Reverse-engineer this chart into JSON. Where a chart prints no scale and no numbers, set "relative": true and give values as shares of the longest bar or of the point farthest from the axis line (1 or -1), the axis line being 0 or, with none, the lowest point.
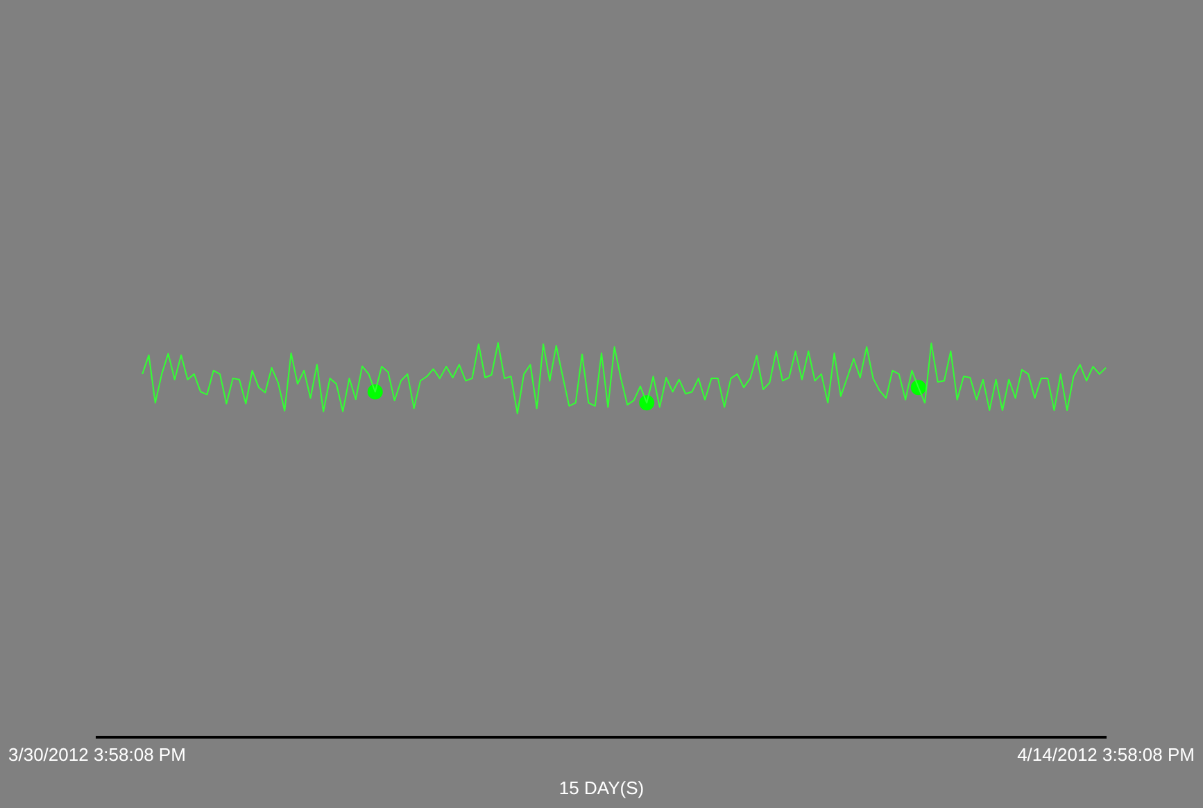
{
  "chart_data": {
    "type": "line",
    "relative": true,
    "xlabel": "15 DAY(S)",
    "categories": [
      "3/30/2012 3:58:08 PM",
      null,
      null,
      null,
      null,
      null,
      null,
      null,
      null,
      null,
      null,
      null,
      null,
      null,
      null,
      null,
      null,
      null,
      null,
      null,
      null,
      null,
      null,
      null,
      null,
      null,
      null,
      null,
      null,
      null,
      null,
      null,
      null,
      null,
      null,
      null,
      null,
      null,
      null,
      null,
      null,
      null,
      null,
      null,
      null,
      null,
      null,
      null,
      null,
      null,
      null,
      null,
      null,
      null,
      null,
      null,
      null,
      null,
      null,
      null,
      null,
      null,
      null,
      null,
      null,
      null,
      null,
      null,
      null,
      null,
      null,
      null,
      null,
      null,
      null,
      null,
      null,
      null,
      null,
      null,
      null,
      null,
      null,
      null,
      null,
      null,
      null,
      null,
      null,
      null,
      null,
      null,
      null,
      null,
      null,
      null,
      null,
      null,
      null,
      null,
      null,
      null,
      null,
      null,
      null,
      null,
      null,
      null,
      null,
      null,
      null,
      null,
      null,
      null,
      null,
      null,
      null,
      null,
      null,
      null,
      null,
      null,
      null,
      null,
      null,
      null,
      null,
      null,
      null,
      null,
      null,
      null,
      null,
      null,
      null,
      null,
      null,
      null,
      null,
      null,
      null,
      null,
      null,
      null,
      null,
      null,
      null,
      null,
      null,
      null,
      null,
      null,
      null,
      null,
      null,
      null,
      "4/14/2012 3:58:08 PM"
    ],
    "grid": false,
    "legend": false,
    "series": [
      {
        "type": "line",
        "marker": "none",
        "color": "#33ff33",
        "values": [
          null,
          null,
          null,
          null,
          null,
          null,
          null,
          0.921,
          0.969,
          0.848,
          0.921,
          0.973,
          0.907,
          0.969,
          0.907,
          0.921,
          0.876,
          0.869,
          0.93,
          0.921,
          0.846,
          0.91,
          0.907,
          0.846,
          0.93,
          0.887,
          0.874,
          0.937,
          0.899,
          0.828,
          0.974,
          0.896,
          0.93,
          0.86,
          0.945,
          0.826,
          0.91,
          0.896,
          0.826,
          0.91,
          0.857,
          0.941,
          0.921,
          0.876,
          0.94,
          0.926,
          0.854,
          0.904,
          0.921,
          0.834,
          0.904,
          0.915,
          0.934,
          0.91,
          0.94,
          0.912,
          0.945,
          0.904,
          0.91,
          0.997,
          0.912,
          0.919,
          1.0,
          0.91,
          0.915,
          0.821,
          0.921,
          0.945,
          0.834,
          0.997,
          0.904,
          0.993,
          0.915,
          0.84,
          0.848,
          0.971,
          0.848,
          0.84,
          0.974,
          0.837,
          0.99,
          0.91,
          0.843,
          0.854,
          0.89,
          0.848,
          0.915,
          0.837,
          0.912,
          0.876,
          0.907,
          0.871,
          0.876,
          0.91,
          0.856,
          0.91,
          0.91,
          0.837,
          0.91,
          0.921,
          0.887,
          0.91,
          0.968,
          0.882,
          0.899,
          0.979,
          0.904,
          0.912,
          0.979,
          0.907,
          0.979,
          0.904,
          0.921,
          0.848,
          0.974,
          0.865,
          0.912,
          0.96,
          0.912,
          0.99,
          0.91,
          0.879,
          0.86,
          0.93,
          0.921,
          0.856,
          0.93,
          0.887,
          0.848,
          0.999,
          0.901,
          0.904,
          0.979,
          0.856,
          0.915,
          0.912,
          0.856,
          0.907,
          0.829,
          0.907,
          0.829,
          0.907,
          0.86,
          0.932,
          0.921,
          0.86,
          0.91,
          0.91,
          0.829,
          0.921,
          0.829,
          0.915,
          0.945,
          0.904,
          0.94,
          0.921,
          0.937
        ]
      },
      {
        "type": "scatter",
        "marker": "circle",
        "color": "#00ff00",
        "values": [
          null,
          null,
          null,
          null,
          null,
          null,
          null,
          null,
          null,
          null,
          null,
          null,
          null,
          null,
          null,
          null,
          null,
          null,
          null,
          null,
          null,
          null,
          null,
          null,
          null,
          null,
          null,
          null,
          null,
          null,
          null,
          null,
          null,
          null,
          null,
          null,
          null,
          null,
          null,
          null,
          null,
          null,
          null,
          0.876,
          null,
          null,
          null,
          null,
          null,
          null,
          null,
          null,
          null,
          null,
          null,
          null,
          null,
          null,
          null,
          null,
          null,
          null,
          null,
          null,
          null,
          null,
          null,
          null,
          null,
          null,
          null,
          null,
          null,
          null,
          null,
          null,
          null,
          null,
          null,
          null,
          null,
          null,
          null,
          null,
          null,
          0.848,
          null,
          null,
          null,
          null,
          null,
          null,
          null,
          null,
          null,
          null,
          null,
          null,
          null,
          null,
          null,
          null,
          null,
          null,
          null,
          null,
          null,
          null,
          null,
          null,
          null,
          null,
          null,
          null,
          null,
          null,
          null,
          null,
          null,
          null,
          null,
          null,
          null,
          null,
          null,
          null,
          null,
          0.887,
          null,
          null,
          null,
          null,
          null,
          null,
          null,
          null,
          null,
          null,
          null,
          null,
          null,
          null,
          null,
          null,
          null,
          null,
          null,
          null,
          null,
          null,
          null,
          null,
          null,
          null,
          null,
          null,
          null
        ]
      }
    ]
  }
}
